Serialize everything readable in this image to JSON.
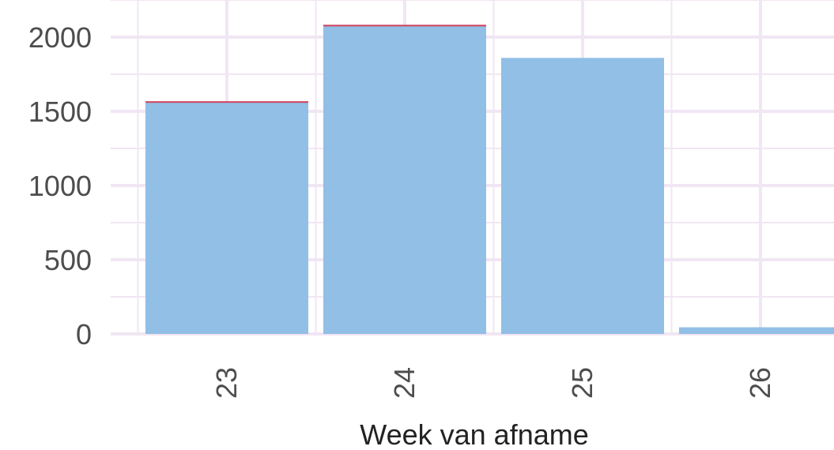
{
  "chart_data": {
    "type": "bar",
    "title": "",
    "xlabel": "Week van afname",
    "ylabel": "",
    "categories": [
      "23",
      "24",
      "25",
      "26"
    ],
    "series": [
      {
        "values": [
          1560,
          2075,
          1860,
          45
        ]
      },
      {
        "values": [
          8,
          8,
          0,
          0
        ]
      }
    ],
    "y_ticks": [
      "0",
      "500",
      "1000",
      "1500",
      "2000"
    ],
    "ylim": [
      0,
      2150
    ],
    "grid": true,
    "colors": {
      "bar_fill": "#91bfe6",
      "bar_top": "#d0405a",
      "grid": "#f1e6f3",
      "tick_text": "#4d4d4d"
    }
  }
}
